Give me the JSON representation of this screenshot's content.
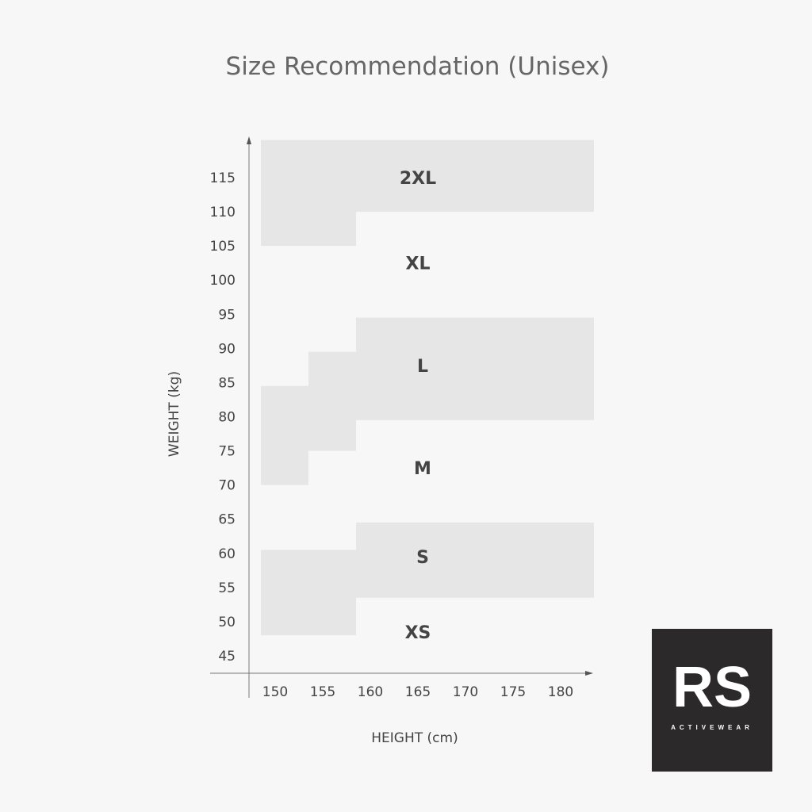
{
  "chart_data": {
    "type": "area",
    "title": "Size Recommendation (Unisex)",
    "xlabel": "HEIGHT (cm)",
    "ylabel": "WEIGHT (kg)",
    "x_ticks": [
      150,
      155,
      160,
      165,
      170,
      175,
      180
    ],
    "y_ticks": [
      45,
      50,
      55,
      60,
      65,
      70,
      75,
      80,
      85,
      90,
      95,
      100,
      105,
      110,
      115
    ],
    "xlim": [
      146,
      184
    ],
    "ylim": [
      42,
      121
    ],
    "grid": false,
    "colors": {
      "shaded": "#e6e6e6",
      "background": "#f7f7f7",
      "text": "#444444",
      "axis": "#777777"
    },
    "regions": [
      {
        "size": "2XL",
        "shaded": true,
        "label_at": [
          165,
          115
        ],
        "polygon": [
          [
            148.5,
            120.5
          ],
          [
            183.5,
            120.5
          ],
          [
            183.5,
            110
          ],
          [
            158.5,
            110
          ],
          [
            158.5,
            105
          ],
          [
            148.5,
            105
          ]
        ]
      },
      {
        "size": "XL",
        "shaded": false,
        "label_at": [
          165,
          102.5
        ]
      },
      {
        "size": "L",
        "shaded": true,
        "label_at": [
          165.5,
          87.5
        ],
        "polygon": [
          [
            158.5,
            94.5
          ],
          [
            183.5,
            94.5
          ],
          [
            183.5,
            79.5
          ],
          [
            158.5,
            79.5
          ],
          [
            158.5,
            75
          ],
          [
            153.5,
            75
          ],
          [
            153.5,
            70
          ],
          [
            148.5,
            70
          ],
          [
            148.5,
            84.5
          ],
          [
            153.5,
            84.5
          ],
          [
            153.5,
            89.5
          ],
          [
            158.5,
            89.5
          ]
        ]
      },
      {
        "size": "M",
        "shaded": false,
        "label_at": [
          165.5,
          72.5
        ]
      },
      {
        "size": "S",
        "shaded": true,
        "label_at": [
          165.5,
          59.5
        ],
        "polygon": [
          [
            158.5,
            64.5
          ],
          [
            183.5,
            64.5
          ],
          [
            183.5,
            53.5
          ],
          [
            158.5,
            53.5
          ],
          [
            158.5,
            48
          ],
          [
            148.5,
            48
          ],
          [
            148.5,
            60.5
          ],
          [
            158.5,
            60.5
          ]
        ]
      },
      {
        "size": "XS",
        "shaded": false,
        "label_at": [
          165,
          48.5
        ]
      }
    ]
  },
  "logo": {
    "mark": "RS",
    "tagline": "ACTIVEWEAR"
  }
}
